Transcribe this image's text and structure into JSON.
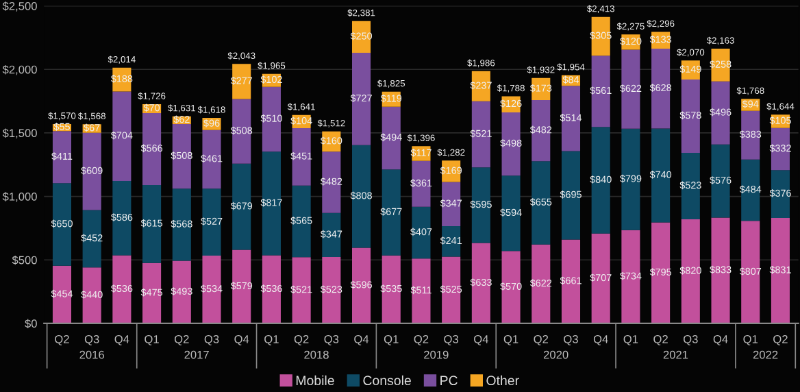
{
  "chart_data": {
    "type": "bar",
    "stacked": true,
    "categories": [
      "Q2",
      "Q3",
      "Q4",
      "Q1",
      "Q2",
      "Q3",
      "Q4",
      "Q1",
      "Q2",
      "Q3",
      "Q4",
      "Q1",
      "Q2",
      "Q3",
      "Q4",
      "Q1",
      "Q2",
      "Q3",
      "Q4",
      "Q1",
      "Q2",
      "Q3",
      "Q4",
      "Q1",
      "Q2"
    ],
    "series": [
      {
        "name": "Mobile",
        "color": "#c2509c",
        "values": [
          454,
          440,
          536,
          475,
          493,
          534,
          579,
          536,
          521,
          523,
          596,
          535,
          511,
          525,
          633,
          570,
          622,
          661,
          707,
          734,
          795,
          820,
          833,
          807,
          831
        ],
        "value_labels": [
          "$454",
          "$440",
          "$536",
          "$475",
          "$493",
          "$534",
          "$579",
          "$536",
          "$521",
          "$523",
          "$596",
          "$535",
          "$511",
          "$525",
          "$633",
          "$570",
          "$622",
          "$661",
          "$707",
          "$734",
          "$795",
          "$820",
          "$833",
          "$807",
          "$831"
        ]
      },
      {
        "name": "Console",
        "color": "#0e4a64",
        "values": [
          650,
          452,
          586,
          615,
          568,
          527,
          679,
          817,
          565,
          347,
          808,
          677,
          407,
          241,
          595,
          594,
          655,
          695,
          840,
          799,
          740,
          523,
          576,
          484,
          376
        ],
        "value_labels": [
          "$650",
          "$452",
          "$586",
          "$615",
          "$568",
          "$527",
          "$679",
          "$817",
          "$565",
          "$347",
          "$808",
          "$677",
          "$407",
          "$241",
          "$595",
          "$594",
          "$655",
          "$695",
          "$840",
          "$799",
          "$740",
          "$523",
          "$576",
          "$484",
          "$376"
        ]
      },
      {
        "name": "PC",
        "color": "#7a4f9e",
        "values": [
          411,
          609,
          704,
          566,
          508,
          461,
          508,
          510,
          451,
          482,
          727,
          494,
          361,
          347,
          521,
          498,
          482,
          514,
          561,
          622,
          628,
          578,
          496,
          383,
          332
        ],
        "value_labels": [
          "$411",
          "$609",
          "$704",
          "$566",
          "$508",
          "$461",
          "$508",
          "$510",
          "$451",
          "$482",
          "$727",
          "$494",
          "$361",
          "$347",
          "$521",
          "$498",
          "$482",
          "$514",
          "$561",
          "$622",
          "$628",
          "$578",
          "$496",
          "$383",
          "$332"
        ]
      },
      {
        "name": "Other",
        "color": "#f5a623",
        "values": [
          55,
          67,
          188,
          70,
          62,
          96,
          277,
          102,
          104,
          160,
          250,
          119,
          117,
          169,
          237,
          126,
          173,
          84,
          305,
          120,
          133,
          149,
          258,
          94,
          105
        ],
        "value_labels": [
          "$55",
          "$67",
          "$188",
          "$70",
          "$62",
          "$96",
          "$277",
          "$102",
          "$104",
          "$160",
          "$250",
          "$119",
          "$117",
          "$169",
          "$237",
          "$126",
          "$173",
          "$84",
          "$305",
          "$120",
          "$133",
          "$149",
          "$258",
          "$94",
          "$105"
        ]
      }
    ],
    "totals": [
      "$1,570",
      "$1,568",
      "$2,014",
      "$1,726",
      "$1,631",
      "$1,618",
      "$2,043",
      "$1,965",
      "$1,641",
      "$1,512",
      "$2,381",
      "$1,825",
      "$1,396",
      "$1,282",
      "$1,986",
      "$1,788",
      "$1,932",
      "$1,954",
      "$2,413",
      "$2,275",
      "$2,296",
      "$2,070",
      "$2,163",
      "$1,768",
      "$1,644"
    ],
    "annotations": [
      "2016",
      "2017",
      "2018",
      "2019",
      "2020",
      "2021",
      "2022"
    ],
    "ylim": [
      0,
      2500
    ],
    "yticks": [
      {
        "value": 0,
        "label": "$0"
      },
      {
        "value": 500,
        "label": "$500"
      },
      {
        "value": 1000,
        "label": "$1,000"
      },
      {
        "value": 1500,
        "label": "$1,500"
      },
      {
        "value": 2000,
        "label": "$2,000"
      },
      {
        "value": 2500,
        "label": "$2,500"
      }
    ],
    "grid": "y",
    "legend": "bottom"
  }
}
